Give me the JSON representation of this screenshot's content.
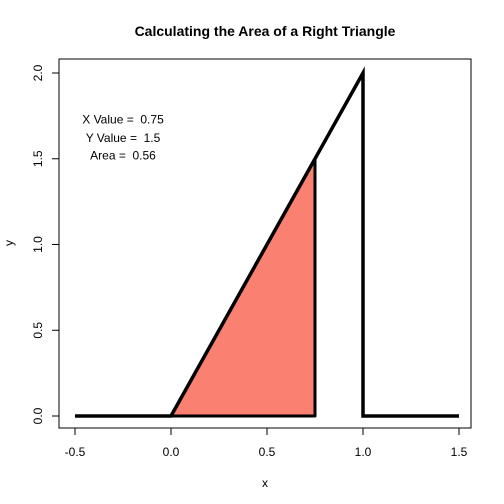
{
  "chart_data": {
    "type": "line",
    "title": "Calculating the Area of a Right Triangle",
    "xlabel": "x",
    "ylabel": "y",
    "xlim": [
      -0.5,
      1.5
    ],
    "ylim": [
      0,
      2
    ],
    "x_ticks": [
      "-0.5",
      "0.0",
      "0.5",
      "1.0",
      "1.5"
    ],
    "y_ticks": [
      "0.0",
      "0.5",
      "1.0",
      "1.5",
      "2.0"
    ],
    "grid": false,
    "series": [
      {
        "points": [
          [
            -0.5,
            0
          ],
          [
            0,
            0
          ],
          [
            1,
            2
          ],
          [
            1,
            0
          ],
          [
            1.5,
            0
          ]
        ],
        "color": "#000000"
      }
    ],
    "shaded_region": {
      "points": [
        [
          0,
          0
        ],
        [
          0.75,
          1.5
        ],
        [
          0.75,
          0
        ]
      ],
      "color": "#FA8072"
    },
    "annotations": [
      {
        "text": "X Value =  0.75",
        "x": -0.25,
        "y": 1.73
      },
      {
        "text": "Y Value =  1.5",
        "x": -0.25,
        "y": 1.62
      },
      {
        "text": "Area =  0.56",
        "x": -0.25,
        "y": 1.52
      }
    ]
  }
}
